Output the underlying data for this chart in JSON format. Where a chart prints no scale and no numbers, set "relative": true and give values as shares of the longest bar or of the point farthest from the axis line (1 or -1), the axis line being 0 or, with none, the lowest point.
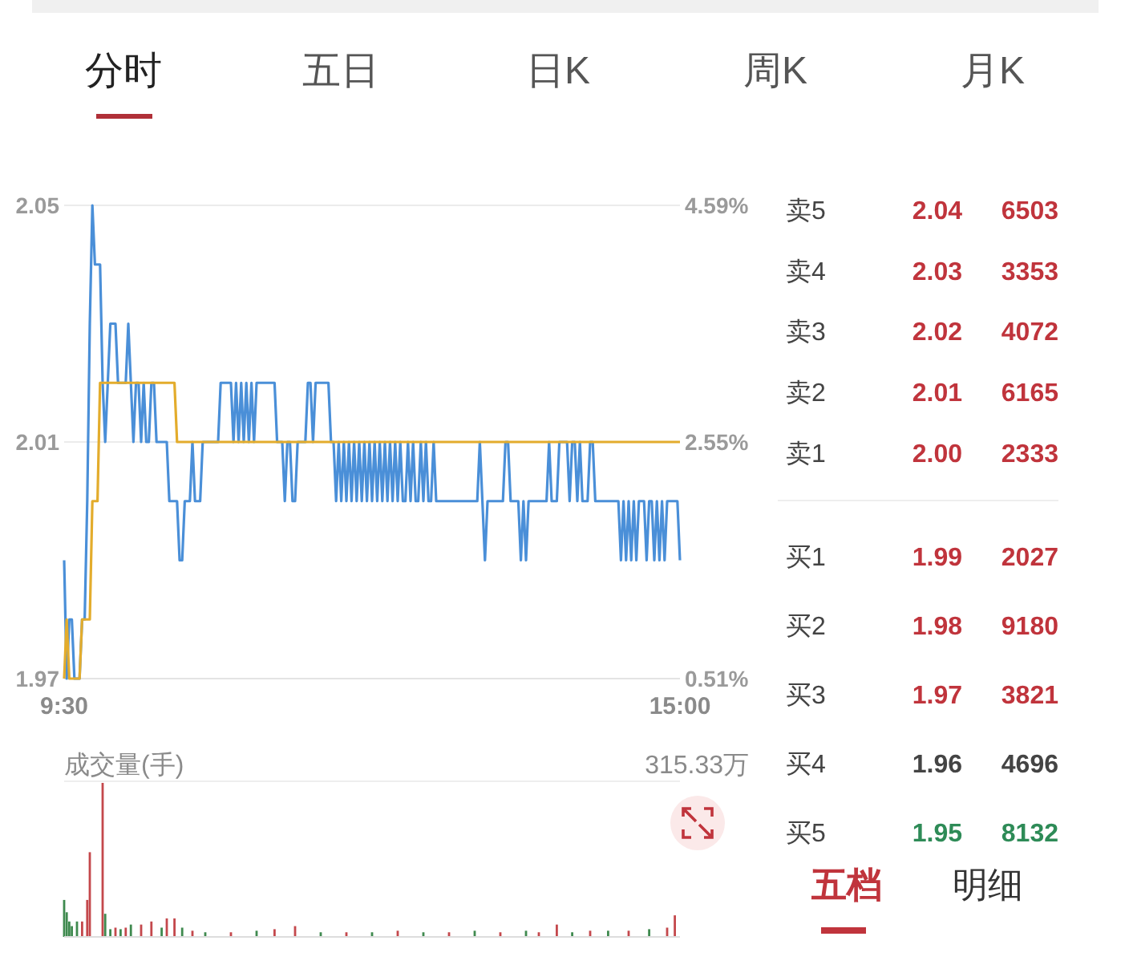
{
  "chart_data": [
    {
      "type": "line",
      "annotations": [
        "分时",
        "五日",
        "日K",
        "周K",
        "月K"
      ],
      "categories": [
        "9:30",
        null,
        null,
        null,
        null,
        null,
        null,
        null,
        null,
        null,
        null,
        null,
        null,
        null,
        null,
        null,
        null,
        null,
        null,
        null,
        null,
        null,
        null,
        null,
        null,
        null,
        null,
        null,
        null,
        null,
        null,
        null,
        null,
        null,
        null,
        null,
        null,
        null,
        null,
        null,
        null,
        null,
        null,
        null,
        null,
        null,
        null,
        null,
        null,
        null,
        null,
        null,
        null,
        null,
        null,
        null,
        null,
        null,
        null,
        null,
        null,
        null,
        null,
        null,
        null,
        null,
        null,
        null,
        null,
        null,
        null,
        null,
        null,
        null,
        null,
        null,
        null,
        null,
        null,
        null,
        null,
        null,
        null,
        null,
        null,
        null,
        null,
        null,
        null,
        null,
        null,
        null,
        null,
        null,
        null,
        null,
        null,
        null,
        null,
        null,
        null,
        null,
        null,
        null,
        null,
        null,
        null,
        null,
        null,
        null,
        null,
        null,
        null,
        null,
        null,
        null,
        null,
        null,
        null,
        null,
        null,
        null,
        null,
        null,
        null,
        null,
        null,
        null,
        null,
        null,
        null,
        null,
        null,
        null,
        null,
        null,
        null,
        null,
        null,
        null,
        null,
        null,
        null,
        null,
        null,
        null,
        null,
        null,
        null,
        null,
        null,
        null,
        null,
        null,
        null,
        null,
        null,
        null,
        null,
        null,
        null,
        null,
        null,
        null,
        null,
        null,
        null,
        null,
        null,
        null,
        null,
        null,
        null,
        null,
        null,
        null,
        null,
        null,
        null,
        null,
        null,
        null,
        null,
        null,
        null,
        null,
        null,
        null,
        null,
        null,
        null,
        null,
        null,
        null,
        null,
        null,
        null,
        null,
        null,
        null,
        null,
        null,
        null,
        null,
        null,
        null,
        null,
        null,
        null,
        null,
        null,
        null,
        null,
        null,
        null,
        null,
        null,
        null,
        null,
        null,
        null,
        null,
        null,
        null,
        null,
        null,
        null,
        null,
        null,
        null,
        null,
        null,
        null,
        null,
        null,
        null,
        null,
        null,
        null,
        null,
        "15:00"
      ],
      "ylim": [
        1.97,
        2.05
      ],
      "yticks": [
        1.97,
        2.01,
        2.05
      ],
      "y2lim": [
        0.51,
        4.59
      ],
      "y2ticks": [
        {
          "value": 0.51,
          "label": "0.51%"
        },
        {
          "value": 2.55,
          "label": "2.55%"
        },
        {
          "value": 4.59,
          "label": "4.59%"
        }
      ],
      "grid": "y",
      "series": [
        {
          "color": "#4a8fd8",
          "values": [
            1.99,
            1.97,
            1.98,
            1.98,
            1.97,
            1.97,
            1.97,
            1.98,
            1.98,
            2.0,
            2.03,
            2.05,
            2.04,
            2.04,
            2.04,
            2.02,
            2.01,
            2.02,
            2.03,
            2.03,
            2.03,
            2.02,
            2.02,
            2.02,
            2.02,
            2.03,
            2.02,
            2.01,
            2.02,
            2.02,
            2.01,
            2.02,
            2.01,
            2.01,
            2.02,
            2.02,
            2.01,
            2.01,
            2.01,
            2.01,
            2.01,
            2.0,
            2.0,
            2.0,
            2.0,
            1.99,
            1.99,
            2.0,
            2.0,
            2.0,
            2.01,
            2.0,
            2.0,
            2.0,
            2.01,
            2.01,
            2.01,
            2.01,
            2.01,
            2.01,
            2.01,
            2.02,
            2.02,
            2.02,
            2.02,
            2.02,
            2.01,
            2.02,
            2.01,
            2.02,
            2.01,
            2.02,
            2.01,
            2.02,
            2.01,
            2.02,
            2.02,
            2.02,
            2.02,
            2.02,
            2.02,
            2.02,
            2.02,
            2.01,
            2.01,
            2.01,
            2.0,
            2.01,
            2.01,
            2.0,
            2.0,
            2.01,
            2.01,
            2.01,
            2.01,
            2.02,
            2.02,
            2.01,
            2.02,
            2.02,
            2.02,
            2.02,
            2.02,
            2.02,
            2.01,
            2.01,
            2.0,
            2.01,
            2.0,
            2.01,
            2.0,
            2.01,
            2.0,
            2.01,
            2.0,
            2.01,
            2.0,
            2.01,
            2.0,
            2.01,
            2.0,
            2.01,
            2.0,
            2.01,
            2.0,
            2.01,
            2.0,
            2.01,
            2.0,
            2.01,
            2.0,
            2.01,
            2.0,
            2.0,
            2.01,
            2.0,
            2.01,
            2.0,
            2.0,
            2.01,
            2.0,
            2.01,
            2.0,
            2.0,
            2.01,
            2.0,
            2.0,
            2.0,
            2.0,
            2.0,
            2.0,
            2.0,
            2.0,
            2.0,
            2.0,
            2.0,
            2.0,
            2.0,
            2.0,
            2.0,
            2.0,
            2.0,
            2.01,
            2.0,
            1.99,
            2.0,
            2.0,
            2.0,
            2.0,
            2.0,
            2.0,
            2.0,
            2.01,
            2.01,
            2.0,
            2.0,
            2.0,
            2.0,
            1.99,
            2.0,
            1.99,
            2.0,
            2.0,
            2.0,
            2.0,
            2.0,
            2.0,
            2.0,
            2.0,
            2.01,
            2.0,
            2.0,
            2.0,
            2.01,
            2.01,
            2.01,
            2.01,
            2.0,
            2.01,
            2.01,
            2.0,
            2.01,
            2.0,
            2.0,
            2.0,
            2.01,
            2.01,
            2.0,
            2.0,
            2.0,
            2.0,
            2.0,
            2.0,
            2.0,
            2.0,
            2.0,
            2.0,
            1.99,
            2.0,
            1.99,
            2.0,
            1.99,
            2.0,
            1.99,
            2.0,
            2.0,
            2.0,
            1.99,
            2.0,
            2.0,
            1.99,
            2.0,
            1.99,
            2.0,
            1.99,
            2.0,
            2.0,
            2.0,
            2.0,
            2.0,
            1.99
          ]
        },
        {
          "color": "#e3ac2c",
          "values": [
            1.97,
            1.98,
            1.97,
            1.97,
            1.97,
            1.97,
            1.97,
            1.98,
            1.98,
            1.98,
            1.98,
            2.0,
            2.0,
            2.0,
            2.02,
            2.02,
            2.02,
            2.02,
            2.02,
            2.02,
            2.02,
            2.02,
            2.02,
            2.02,
            2.02,
            2.02,
            2.02,
            2.02,
            2.02,
            2.02,
            2.02,
            2.02,
            2.02,
            2.02,
            2.02,
            2.02,
            2.02,
            2.02,
            2.02,
            2.02,
            2.02,
            2.02,
            2.02,
            2.02,
            2.01,
            2.01,
            2.01,
            2.01,
            2.01,
            2.01,
            2.01,
            2.01,
            2.01,
            2.01,
            2.01,
            2.01,
            2.01,
            2.01,
            2.01,
            2.01,
            2.01,
            2.01,
            2.01,
            2.01,
            2.01,
            2.01,
            2.01,
            2.01,
            2.01,
            2.01,
            2.01,
            2.01,
            2.01,
            2.01,
            2.01,
            2.01,
            2.01,
            2.01,
            2.01,
            2.01,
            2.01,
            2.01,
            2.01,
            2.01,
            2.01,
            2.01,
            2.01,
            2.01,
            2.01,
            2.01,
            2.01,
            2.01,
            2.01,
            2.01,
            2.01,
            2.01,
            2.01,
            2.01,
            2.01,
            2.01,
            2.01,
            2.01,
            2.01,
            2.01,
            2.01,
            2.01,
            2.01,
            2.01,
            2.01,
            2.01,
            2.01,
            2.01,
            2.01,
            2.01,
            2.01,
            2.01,
            2.01,
            2.01,
            2.01,
            2.01,
            2.01,
            2.01,
            2.01,
            2.01,
            2.01,
            2.01,
            2.01,
            2.01,
            2.01,
            2.01,
            2.01,
            2.01,
            2.01,
            2.01,
            2.01,
            2.01,
            2.01,
            2.01,
            2.01,
            2.01,
            2.01,
            2.01,
            2.01,
            2.01,
            2.01,
            2.01,
            2.01,
            2.01,
            2.01,
            2.01,
            2.01,
            2.01,
            2.01,
            2.01,
            2.01,
            2.01,
            2.01,
            2.01,
            2.01,
            2.01,
            2.01,
            2.01,
            2.01,
            2.01,
            2.01,
            2.01,
            2.01,
            2.01,
            2.01,
            2.01,
            2.01,
            2.01,
            2.01,
            2.01,
            2.01,
            2.01,
            2.01,
            2.01,
            2.01,
            2.01,
            2.01,
            2.01,
            2.01,
            2.01,
            2.01,
            2.01,
            2.01,
            2.01,
            2.01,
            2.01,
            2.01,
            2.01,
            2.01,
            2.01,
            2.01,
            2.01,
            2.01,
            2.01,
            2.01,
            2.01,
            2.01,
            2.01,
            2.01,
            2.01,
            2.01,
            2.01,
            2.01,
            2.01,
            2.01,
            2.01,
            2.01,
            2.01,
            2.01,
            2.01,
            2.01,
            2.01,
            2.01,
            2.01,
            2.01,
            2.01,
            2.01,
            2.01,
            2.01,
            2.01,
            2.01,
            2.01,
            2.01,
            2.01,
            2.01,
            2.01,
            2.01,
            2.01,
            2.01,
            2.01,
            2.01,
            2.01,
            2.01,
            2.01,
            2.01,
            2.01,
            2.01
          ]
        }
      ]
    },
    {
      "type": "bar",
      "relative": true,
      "ylabel": "成交量(手)",
      "annotations": [
        "315.33万"
      ],
      "categories": [
        null,
        null,
        null,
        null,
        null,
        null,
        null,
        null,
        null,
        null,
        null,
        null,
        null,
        null,
        null,
        null,
        null,
        null,
        null,
        null,
        null,
        null,
        null,
        null,
        null,
        null,
        null,
        null,
        null,
        null,
        null,
        null,
        null,
        null,
        null,
        null,
        null,
        null,
        null,
        null,
        null,
        null,
        null,
        null,
        null,
        null,
        null,
        null,
        null,
        null,
        null,
        null,
        null,
        null,
        null,
        null,
        null,
        null,
        null,
        null,
        null,
        null,
        null,
        null,
        null,
        null,
        null,
        null,
        null,
        null,
        null,
        null,
        null,
        null,
        null,
        null,
        null,
        null,
        null,
        null,
        null,
        null,
        null,
        null,
        null,
        null,
        null,
        null,
        null,
        null,
        null,
        null,
        null,
        null,
        null,
        null,
        null,
        null,
        null,
        null,
        null,
        null,
        null,
        null,
        null,
        null,
        null,
        null,
        null,
        null,
        null,
        null,
        null,
        null,
        null,
        null,
        null,
        null,
        null,
        null,
        null,
        null,
        null,
        null,
        null,
        null,
        null,
        null,
        null,
        null,
        null,
        null,
        null,
        null,
        null,
        null,
        null,
        null,
        null,
        null,
        null,
        null,
        null,
        null,
        null,
        null,
        null,
        null,
        null,
        null,
        null,
        null,
        null,
        null,
        null,
        null,
        null,
        null,
        null,
        null,
        null,
        null,
        null,
        null,
        null,
        null,
        null,
        null,
        null,
        null,
        null,
        null,
        null,
        null,
        null,
        null,
        null,
        null,
        null,
        null,
        null,
        null,
        null,
        null,
        null,
        null,
        null,
        null,
        null,
        null,
        null,
        null,
        null,
        null,
        null,
        null,
        null,
        null,
        null,
        null,
        null,
        null,
        null,
        null,
        null,
        null,
        null,
        null,
        null,
        null,
        null,
        null,
        null,
        null,
        null,
        null,
        null,
        null,
        null,
        null,
        null,
        null,
        null,
        null,
        null,
        null,
        null,
        null,
        null,
        null,
        null,
        null,
        null,
        null,
        null,
        null,
        null,
        null,
        null,
        null,
        null
      ],
      "values": [
        0.24,
        0.16,
        0.1,
        0.07,
        null,
        0.1,
        null,
        0.1,
        null,
        0.24,
        0.55,
        null,
        null,
        null,
        null,
        1,
        0.15,
        null,
        0.05,
        null,
        0.06,
        null,
        0.05,
        null,
        0.06,
        null,
        0.08,
        null,
        null,
        null,
        0.08,
        null,
        null,
        null,
        0.1,
        null,
        null,
        null,
        0.06,
        null,
        0.12,
        null,
        null,
        0.12,
        null,
        null,
        0.06,
        null,
        null,
        null,
        0.04,
        null,
        null,
        null,
        null,
        0.03,
        null,
        null,
        null,
        null,
        null,
        null,
        null,
        null,
        null,
        0.03,
        null,
        null,
        null,
        null,
        null,
        null,
        null,
        null,
        null,
        0.04,
        null,
        null,
        null,
        null,
        null,
        null,
        0.05,
        null,
        null,
        null,
        null,
        null,
        null,
        null,
        0.07,
        null,
        null,
        null,
        null,
        null,
        null,
        null,
        null,
        null,
        0.03,
        null,
        null,
        null,
        null,
        null,
        null,
        null,
        null,
        null,
        0.03,
        null,
        null,
        null,
        null,
        null,
        null,
        null,
        null,
        null,
        0.03,
        null,
        null,
        null,
        null,
        null,
        null,
        null,
        null,
        null,
        0.04,
        null,
        null,
        null,
        null,
        null,
        null,
        null,
        null,
        null,
        0.03,
        null,
        null,
        null,
        null,
        null,
        null,
        null,
        null,
        null,
        0.03,
        null,
        null,
        null,
        null,
        null,
        null,
        null,
        null,
        null,
        0.04,
        null,
        null,
        null,
        null,
        null,
        null,
        null,
        null,
        null,
        0.03,
        null,
        null,
        null,
        null,
        null,
        null,
        null,
        null,
        null,
        0.04,
        null,
        null,
        null,
        null,
        0.03,
        null,
        null,
        null,
        null,
        null,
        null,
        0.08,
        null,
        null,
        null,
        null,
        null,
        0.03,
        null,
        null,
        null,
        null,
        null,
        null,
        0.04,
        null,
        null,
        null,
        null,
        null,
        null,
        0.04,
        null,
        null,
        null,
        null,
        null,
        null,
        null,
        0.04,
        null,
        null,
        null,
        null,
        null,
        null,
        null,
        0.05,
        null,
        null,
        null,
        null,
        null,
        null,
        0.06,
        null,
        null,
        0.14,
        null,
        null
      ],
      "colors": [
        "#3f8a4f",
        "#3f8a4f",
        "#3f8a4f",
        "#3f8a4f",
        null,
        "#3f8a4f",
        null,
        "#c4484c",
        null,
        "#c4484c",
        "#c4484c",
        null,
        null,
        null,
        null,
        "#c4484c",
        "#3f8a4f",
        null,
        "#3f8a4f",
        null,
        "#c4484c",
        null,
        "#3f8a4f",
        null,
        "#c4484c",
        null,
        "#3f8a4f",
        null,
        null,
        null,
        "#c4484c",
        null,
        null,
        null,
        "#c4484c",
        null,
        null,
        null,
        "#3f8a4f",
        null,
        "#c4484c",
        null,
        null,
        "#c4484c",
        null,
        null,
        "#3f8a4f",
        null,
        null,
        null,
        "#c4484c",
        null,
        null,
        null,
        null,
        "#3f8a4f",
        null,
        null,
        null,
        null,
        null,
        null,
        null,
        null,
        null,
        "#c4484c",
        null,
        null,
        null,
        null,
        null,
        null,
        null,
        null,
        null,
        "#3f8a4f",
        null,
        null,
        null,
        null,
        null,
        null,
        "#c4484c",
        null,
        null,
        null,
        null,
        null,
        null,
        null,
        "#c4484c",
        null,
        null,
        null,
        null,
        null,
        null,
        null,
        null,
        null,
        "#3f8a4f",
        null,
        null,
        null,
        null,
        null,
        null,
        null,
        null,
        null,
        "#c4484c",
        null,
        null,
        null,
        null,
        null,
        null,
        null,
        null,
        null,
        "#3f8a4f",
        null,
        null,
        null,
        null,
        null,
        null,
        null,
        null,
        null,
        "#c4484c",
        null,
        null,
        null,
        null,
        null,
        null,
        null,
        null,
        null,
        "#3f8a4f",
        null,
        null,
        null,
        null,
        null,
        null,
        null,
        null,
        null,
        "#c4484c",
        null,
        null,
        null,
        null,
        null,
        null,
        null,
        null,
        null,
        "#3f8a4f",
        null,
        null,
        null,
        null,
        null,
        null,
        null,
        null,
        null,
        "#c4484c",
        null,
        null,
        null,
        null,
        null,
        null,
        null,
        null,
        null,
        "#3f8a4f",
        null,
        null,
        null,
        null,
        "#c4484c",
        null,
        null,
        null,
        null,
        null,
        null,
        "#c4484c",
        null,
        null,
        null,
        null,
        null,
        "#3f8a4f",
        null,
        null,
        null,
        null,
        null,
        null,
        "#c4484c",
        null,
        null,
        null,
        null,
        null,
        null,
        "#3f8a4f",
        null,
        null,
        null,
        null,
        null,
        null,
        null,
        "#c4484c",
        null,
        null,
        null,
        null,
        null,
        null,
        null,
        "#3f8a4f",
        null,
        null,
        null,
        null,
        null,
        null,
        "#c4484c",
        null,
        null,
        "#c4484c",
        null,
        null
      ]
    },
    {
      "type": "other",
      "categories": [
        "卖5",
        "卖4",
        "卖3",
        "卖2",
        "卖1",
        "买1",
        "买2",
        "买3",
        "买4",
        "买5"
      ],
      "colors": [
        "#c0343c",
        "#c0343c",
        "#c0343c",
        "#c0343c",
        "#c0343c",
        "#c0343c",
        "#c0343c",
        "#c0343c",
        "#444444",
        "#2e8b57"
      ],
      "annotations": [
        "五档",
        "明细"
      ],
      "series": [
        {
          "values": [
            2.04,
            2.03,
            2.02,
            2.01,
            2.0,
            1.99,
            1.98,
            1.97,
            1.96,
            1.95
          ],
          "value_labels": [
            "2.04",
            "2.03",
            "2.02",
            "2.01",
            "2.00",
            "1.99",
            "1.98",
            "1.97",
            "1.96",
            "1.95"
          ]
        },
        {
          "values": [
            6503,
            3353,
            4072,
            6165,
            2333,
            2027,
            9180,
            3821,
            4696,
            8132
          ],
          "value_labels": [
            "6503",
            "3353",
            "4072",
            "6165",
            "2333",
            "2027",
            "9180",
            "3821",
            "4696",
            "8132"
          ]
        }
      ]
    }
  ]
}
